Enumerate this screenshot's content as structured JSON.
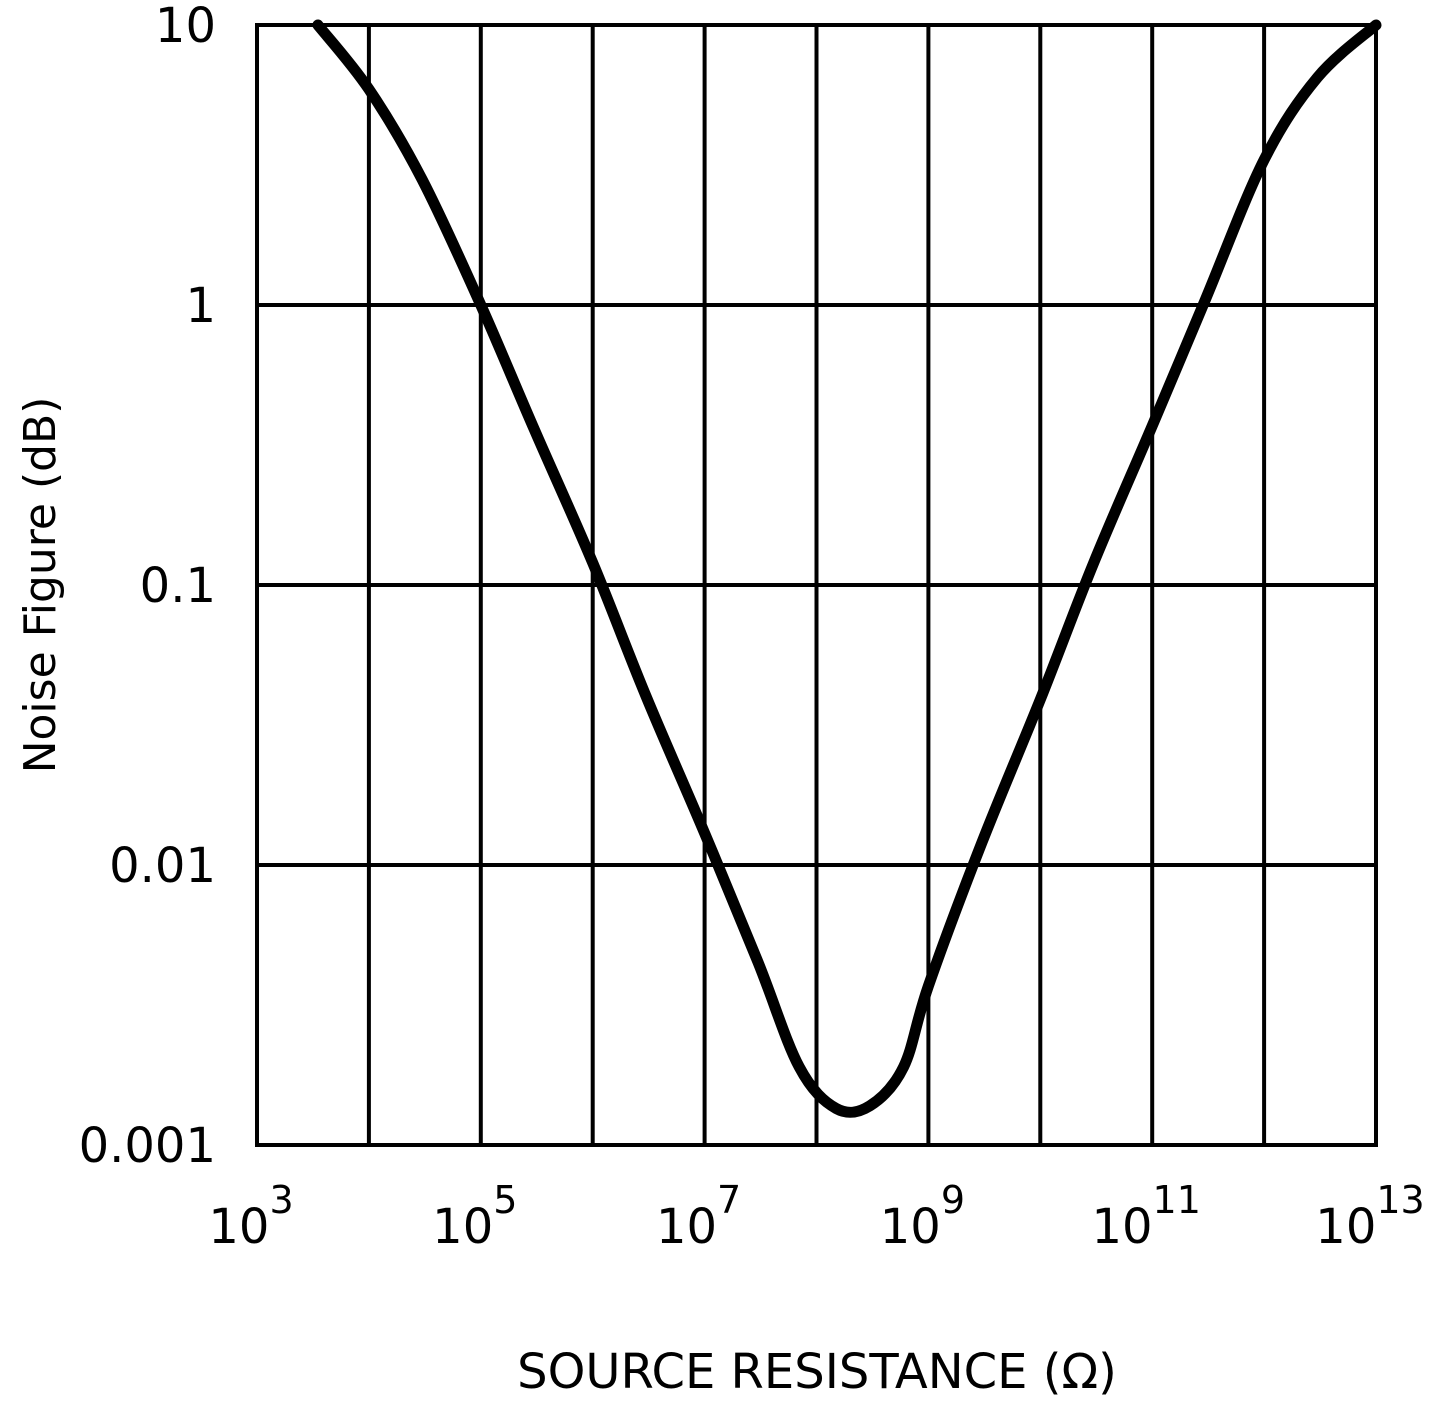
{
  "chart_data": {
    "type": "line",
    "title": "",
    "xlabel": "SOURCE RESISTANCE (Ω)",
    "ylabel": "Noise Figure (dB)",
    "x_scale": "log",
    "y_scale": "log",
    "xlim": [
      1000,
      10000000000000
    ],
    "ylim": [
      0.001,
      10
    ],
    "x_ticks": [
      {
        "base": "10",
        "exp": "3",
        "value": 1000
      },
      {
        "base": "10",
        "exp": "5",
        "value": 100000
      },
      {
        "base": "10",
        "exp": "7",
        "value": 10000000
      },
      {
        "base": "10",
        "exp": "9",
        "value": 1000000000
      },
      {
        "base": "10",
        "exp": "11",
        "value": 100000000000
      },
      {
        "base": "10",
        "exp": "13",
        "value": 10000000000000
      }
    ],
    "y_ticks": [
      {
        "label": "10",
        "value": 10
      },
      {
        "label": "1",
        "value": 1
      },
      {
        "label": "0.1",
        "value": 0.1
      },
      {
        "label": "0.01",
        "value": 0.01
      },
      {
        "label": "0.001",
        "value": 0.001
      }
    ],
    "grid": true,
    "series": [
      {
        "x": [
          3500,
          10000,
          30000,
          100000,
          300000,
          1000000,
          3000000,
          10000000,
          30000000,
          70000000,
          150000000,
          300000000,
          600000000,
          1000000000,
          3000000000,
          10000000000,
          30000000000,
          100000000000,
          300000000000,
          1000000000000,
          3000000000000,
          10000000000000
        ],
        "y": [
          10,
          5.9,
          2.8,
          1.0,
          0.36,
          0.12,
          0.04,
          0.013,
          0.0045,
          0.0019,
          0.00135,
          0.00138,
          0.0019,
          0.0037,
          0.012,
          0.039,
          0.12,
          0.37,
          1.05,
          3.3,
          6.5,
          10
        ]
      }
    ]
  }
}
